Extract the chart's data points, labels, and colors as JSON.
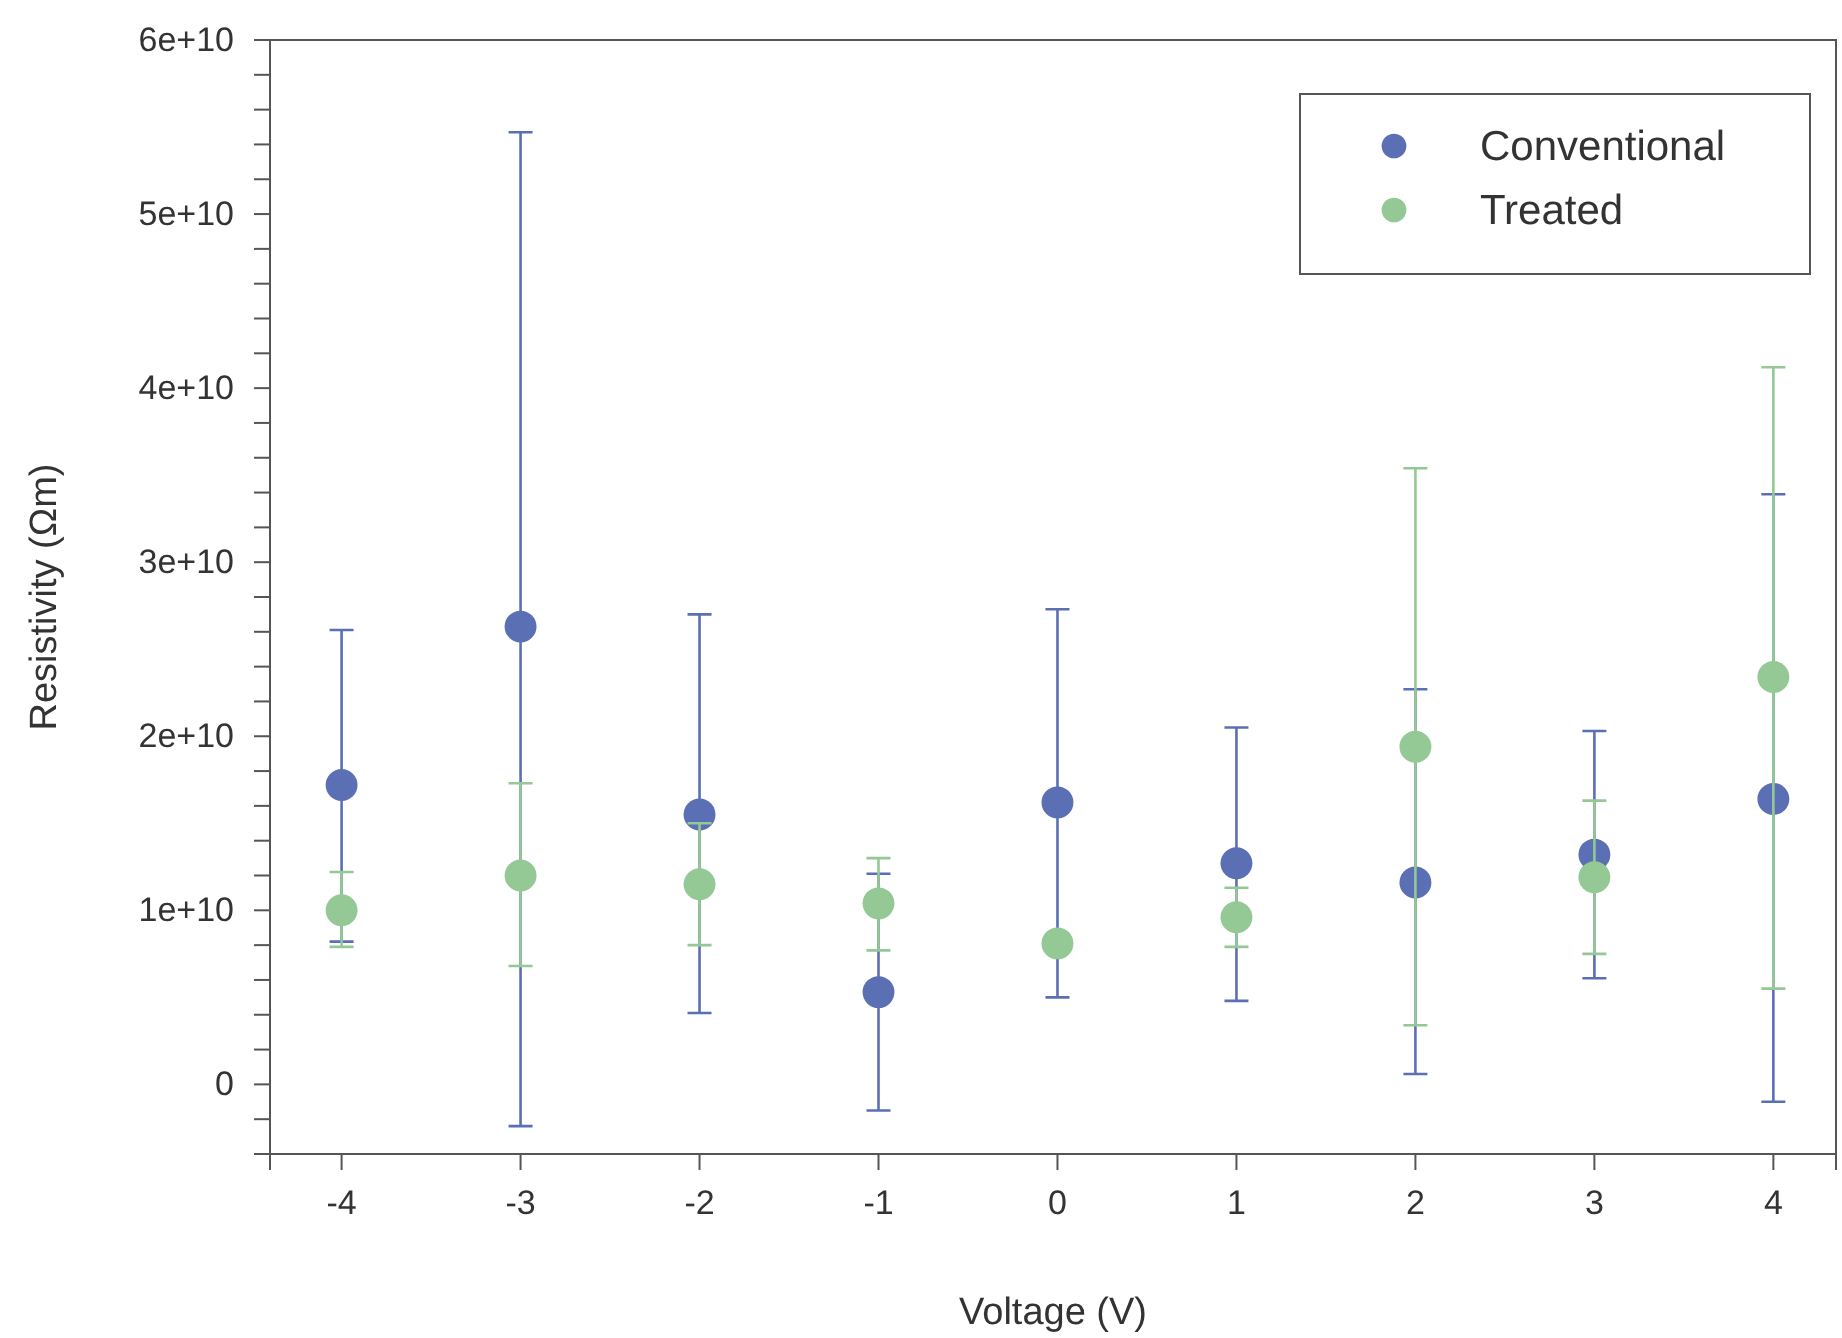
{
  "chart_data": {
    "type": "scatter",
    "xlabel": "Voltage (V)",
    "ylabel": "Resistivity (Ωm)",
    "x": [
      -4,
      -3,
      -2,
      -1,
      0,
      1,
      2,
      3,
      4
    ],
    "xlim": [
      -4.4,
      4.35
    ],
    "xticks": [
      -4,
      -3,
      -2,
      -1,
      0,
      1,
      2,
      3,
      4
    ],
    "ylim": [
      -4000000000.0,
      60000000000.0
    ],
    "yticks": [
      {
        "value": -2000000000.0,
        "label": null
      },
      {
        "value": 0,
        "label": "0"
      },
      {
        "value": 2000000000.0,
        "label": null
      },
      {
        "value": 4000000000.0,
        "label": null
      },
      {
        "value": 6000000000.0,
        "label": null
      },
      {
        "value": 8000000000.0,
        "label": null
      },
      {
        "value": 10000000000.0,
        "label": "1e+10"
      },
      {
        "value": 12000000000.0,
        "label": null
      },
      {
        "value": 14000000000.0,
        "label": null
      },
      {
        "value": 16000000000.0,
        "label": null
      },
      {
        "value": 18000000000.0,
        "label": null
      },
      {
        "value": 20000000000.0,
        "label": "2e+10"
      },
      {
        "value": 22000000000.0,
        "label": null
      },
      {
        "value": 24000000000.0,
        "label": null
      },
      {
        "value": 26000000000.0,
        "label": null
      },
      {
        "value": 28000000000.0,
        "label": null
      },
      {
        "value": 30000000000.0,
        "label": "3e+10"
      },
      {
        "value": 32000000000.0,
        "label": null
      },
      {
        "value": 34000000000.0,
        "label": null
      },
      {
        "value": 36000000000.0,
        "label": null
      },
      {
        "value": 38000000000.0,
        "label": null
      },
      {
        "value": 40000000000.0,
        "label": "4e+10"
      },
      {
        "value": 42000000000.0,
        "label": null
      },
      {
        "value": 44000000000.0,
        "label": null
      },
      {
        "value": 46000000000.0,
        "label": null
      },
      {
        "value": 48000000000.0,
        "label": null
      },
      {
        "value": 50000000000.0,
        "label": "5e+10"
      },
      {
        "value": 52000000000.0,
        "label": null
      },
      {
        "value": 54000000000.0,
        "label": null
      },
      {
        "value": 56000000000.0,
        "label": null
      },
      {
        "value": 58000000000.0,
        "label": null
      },
      {
        "value": 60000000000.0,
        "label": "6e+10"
      }
    ],
    "grid": false,
    "legend": "top right",
    "marker": "circle",
    "series": [
      {
        "name": "Conventional",
        "color": "#5b6fb5",
        "values": [
          17200000000.0,
          26300000000.0,
          15500000000.0,
          5300000000.0,
          16200000000.0,
          12700000000.0,
          11600000000.0,
          13200000000.0,
          16400000000.0
        ],
        "errors": [
          [
            8200000000.0,
            26100000000.0
          ],
          [
            -2400000000.0,
            54700000000.0
          ],
          [
            4100000000.0,
            27000000000.0
          ],
          [
            -1500000000.0,
            12100000000.0
          ],
          [
            5000000000.0,
            27300000000.0
          ],
          [
            4800000000.0,
            20500000000.0
          ],
          [
            600000000.0,
            22700000000.0
          ],
          [
            6100000000.0,
            20300000000.0
          ],
          [
            -1000000000.0,
            33900000000.0
          ]
        ]
      },
      {
        "name": "Treated",
        "color": "#94c894",
        "values": [
          10000000000.0,
          12000000000.0,
          11500000000.0,
          10400000000.0,
          8100000000.0,
          9600000000.0,
          19400000000.0,
          11900000000.0,
          23400000000.0
        ],
        "errors": [
          [
            7900000000.0,
            12200000000.0
          ],
          [
            6800000000.0,
            17300000000.0
          ],
          [
            8000000000.0,
            15000000000.0
          ],
          [
            7700000000.0,
            13000000000.0
          ],
          null,
          [
            7900000000.0,
            11300000000.0
          ],
          [
            3400000000.0,
            35400000000.0
          ],
          [
            7500000000.0,
            16300000000.0
          ],
          [
            5500000000.0,
            41200000000.0
          ]
        ]
      }
    ]
  }
}
